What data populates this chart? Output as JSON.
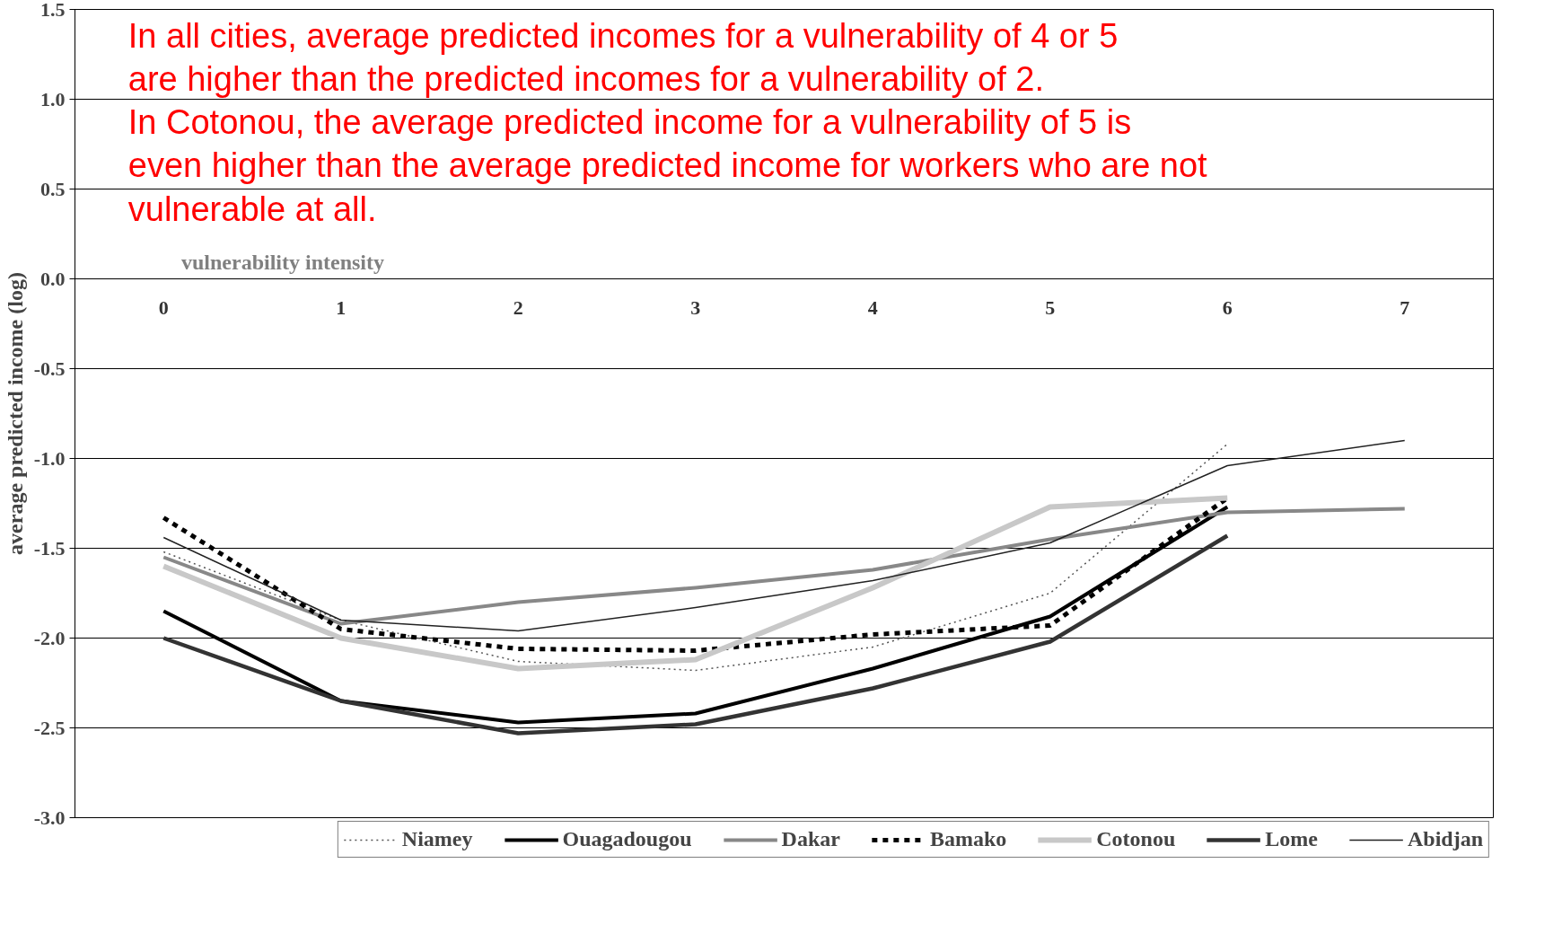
{
  "chart_data": {
    "type": "line",
    "xlabel": "vulnerability intensity",
    "ylabel": "average predicted income (log)",
    "annotations": [
      "In all cities, average predicted incomes for a vulnerability of 4 or 5 are higher than the predicted incomes for a vulnerability of 2.",
      "In Cotonou, the average predicted income for a vulnerability of 5 is even higher than the average predicted income for workers who are not vulnerable at all."
    ],
    "x": [
      0,
      1,
      2,
      3,
      4,
      5,
      6
    ],
    "xlim": [
      -0.5,
      7.5
    ],
    "xticks": [
      0,
      1,
      2,
      3,
      4,
      5,
      6,
      7
    ],
    "ylim": [
      -3.0,
      1.5
    ],
    "yticks": [
      {
        "value": -3,
        "label": "-3.0"
      },
      {
        "value": -2.5,
        "label": "-2.5"
      },
      {
        "value": -2,
        "label": "-2.0"
      },
      {
        "value": -1.5,
        "label": "-1.5"
      },
      {
        "value": -1,
        "label": "-1.0"
      },
      {
        "value": -0.5,
        "label": "-0.5"
      },
      {
        "value": 0,
        "label": "0.0"
      },
      {
        "value": 0.5,
        "label": "0.5"
      },
      {
        "value": 1,
        "label": "1.0"
      },
      {
        "value": 1.5,
        "label": "1.5"
      }
    ],
    "grid": "y",
    "legend": "bottom",
    "marker": "none",
    "series": [
      {
        "name": "Niamey",
        "color": "#555555",
        "line_style": "dotted",
        "values": [
          -1.52,
          -1.9,
          -2.13,
          -2.18,
          -2.05,
          -1.75,
          -0.92
        ]
      },
      {
        "name": "Ouagadougou",
        "color": "#000000",
        "line_style": "solid",
        "values": [
          -1.85,
          -2.35,
          -2.47,
          -2.42,
          -2.17,
          -1.88,
          -1.27
        ]
      },
      {
        "name": "Dakar",
        "color": "#888888",
        "line_style": "solid",
        "x": [
          0,
          1,
          2,
          3,
          4,
          5,
          6,
          7
        ],
        "values": [
          -1.55,
          -1.92,
          -1.8,
          -1.72,
          -1.62,
          -1.45,
          -1.3,
          -1.28
        ]
      },
      {
        "name": "Bamako",
        "color": "#000000",
        "line_style": "dashed",
        "values": [
          -1.33,
          -1.95,
          -2.06,
          -2.07,
          -1.98,
          -1.93,
          -1.22
        ]
      },
      {
        "name": "Cotonou",
        "color": "#c8c8c8",
        "line_style": "solid",
        "values": [
          -1.6,
          -2.0,
          -2.17,
          -2.12,
          -1.72,
          -1.27,
          -1.22
        ]
      },
      {
        "name": "Lome",
        "color": "#333333",
        "line_style": "solid",
        "values": [
          -2.0,
          -2.35,
          -2.53,
          -2.48,
          -2.28,
          -2.02,
          -1.43
        ]
      },
      {
        "name": "Abidjan",
        "color": "#222222",
        "line_style": "solid",
        "x": [
          0,
          1,
          2,
          3,
          4,
          5,
          6,
          7
        ],
        "values": [
          -1.44,
          -1.9,
          -1.96,
          -1.83,
          -1.68,
          -1.47,
          -1.04,
          -0.9
        ]
      }
    ]
  }
}
